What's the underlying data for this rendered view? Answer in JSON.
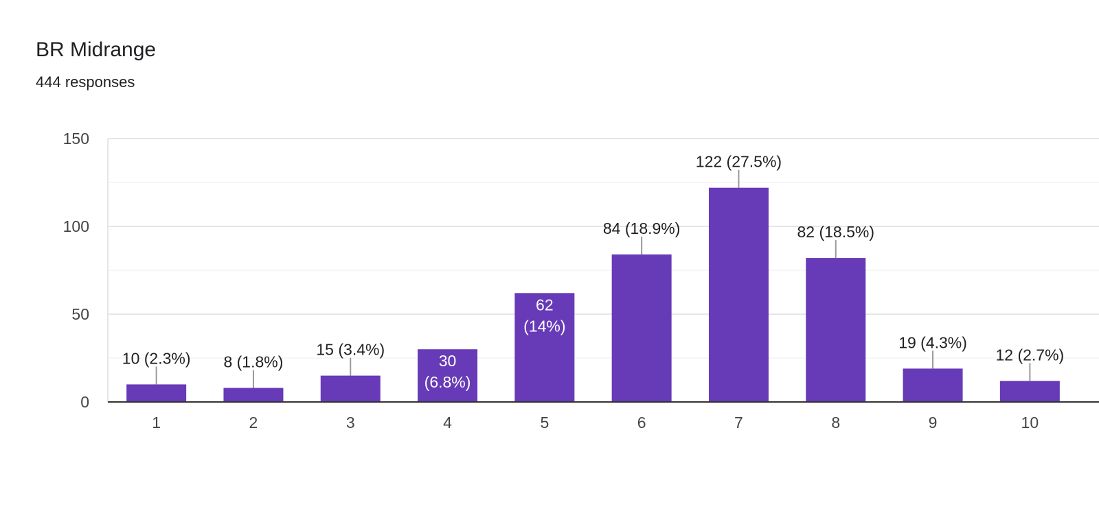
{
  "header": {
    "title": "BR Midrange",
    "responses": "444 responses"
  },
  "colors": {
    "bar": "#673ab7",
    "gridline": "#eeeeee",
    "axis": "#333333",
    "leader": "#999999"
  },
  "chart_data": {
    "type": "bar",
    "title": "BR Midrange",
    "xlabel": "",
    "ylabel": "",
    "ylim": [
      0,
      150
    ],
    "yticks": [
      0,
      50,
      100,
      150
    ],
    "grid": true,
    "categories": [
      "1",
      "2",
      "3",
      "4",
      "5",
      "6",
      "7",
      "8",
      "9",
      "10"
    ],
    "values": [
      10,
      8,
      15,
      30,
      62,
      84,
      122,
      82,
      19,
      12
    ],
    "labels": [
      "10 (2.3%)",
      "8 (1.8%)",
      "15 (3.4%)",
      "30 (6.8%)",
      "62 (14%)",
      "84 (18.9%)",
      "122 (27.5%)",
      "82 (18.5%)",
      "19 (4.3%)",
      "12 (2.7%)"
    ],
    "label_inside": [
      false,
      false,
      false,
      true,
      true,
      false,
      false,
      false,
      false,
      false
    ]
  }
}
